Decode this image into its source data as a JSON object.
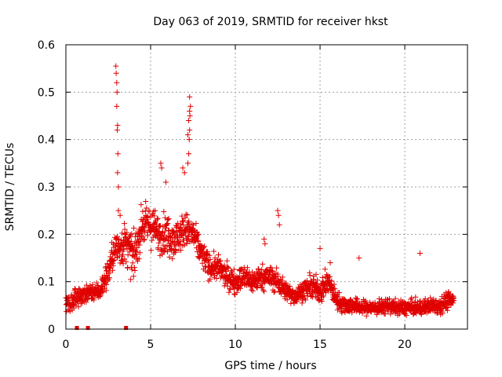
{
  "chart_data": {
    "type": "scatter",
    "title": "Day 063 of 2019, SRMTID for receiver hkst",
    "xlabel": "GPS time / hours",
    "ylabel": "SRMTID / TECUs",
    "xlim": [
      0,
      23.7
    ],
    "ylim": [
      0,
      0.6
    ],
    "xticks": [
      "0",
      "5",
      "10",
      "15",
      "20"
    ],
    "xtick_values": [
      0,
      5,
      10,
      15,
      20
    ],
    "yticks": [
      "0",
      "0.1",
      "0.2",
      "0.3",
      "0.4",
      "0.5",
      "0.6"
    ],
    "ytick_values": [
      0,
      0.1,
      0.2,
      0.3,
      0.4,
      0.5,
      0.6
    ],
    "grid": true,
    "marker": "plus",
    "color": "#e00000",
    "series": [
      {
        "name": "SRMTID",
        "profile": [
          [
            0.0,
            0.06,
            0.03
          ],
          [
            0.3,
            0.05,
            0.03
          ],
          [
            0.6,
            0.07,
            0.03
          ],
          [
            1.0,
            0.07,
            0.03
          ],
          [
            1.5,
            0.08,
            0.03
          ],
          [
            2.0,
            0.08,
            0.03
          ],
          [
            2.5,
            0.12,
            0.05
          ],
          [
            2.8,
            0.16,
            0.05
          ],
          [
            3.0,
            0.17,
            0.06
          ],
          [
            3.5,
            0.18,
            0.07
          ],
          [
            4.0,
            0.15,
            0.07
          ],
          [
            4.5,
            0.22,
            0.06
          ],
          [
            5.0,
            0.22,
            0.07
          ],
          [
            5.5,
            0.2,
            0.06
          ],
          [
            6.0,
            0.2,
            0.07
          ],
          [
            6.5,
            0.19,
            0.06
          ],
          [
            7.0,
            0.21,
            0.06
          ],
          [
            7.5,
            0.2,
            0.05
          ],
          [
            8.0,
            0.16,
            0.05
          ],
          [
            8.5,
            0.13,
            0.04
          ],
          [
            9.0,
            0.13,
            0.04
          ],
          [
            9.5,
            0.11,
            0.04
          ],
          [
            10.0,
            0.1,
            0.04
          ],
          [
            10.5,
            0.11,
            0.04
          ],
          [
            11.0,
            0.1,
            0.04
          ],
          [
            11.5,
            0.11,
            0.04
          ],
          [
            12.0,
            0.11,
            0.04
          ],
          [
            12.5,
            0.1,
            0.04
          ],
          [
            13.0,
            0.08,
            0.03
          ],
          [
            13.5,
            0.07,
            0.03
          ],
          [
            14.0,
            0.08,
            0.03
          ],
          [
            14.5,
            0.09,
            0.04
          ],
          [
            15.0,
            0.08,
            0.04
          ],
          [
            15.5,
            0.1,
            0.04
          ],
          [
            16.0,
            0.06,
            0.03
          ],
          [
            16.5,
            0.05,
            0.03
          ],
          [
            17.0,
            0.05,
            0.025
          ],
          [
            17.5,
            0.045,
            0.025
          ],
          [
            18.0,
            0.045,
            0.025
          ],
          [
            18.5,
            0.045,
            0.025
          ],
          [
            19.0,
            0.05,
            0.025
          ],
          [
            19.5,
            0.045,
            0.025
          ],
          [
            20.0,
            0.045,
            0.025
          ],
          [
            20.5,
            0.045,
            0.025
          ],
          [
            21.0,
            0.045,
            0.025
          ],
          [
            21.5,
            0.05,
            0.025
          ],
          [
            22.0,
            0.05,
            0.03
          ],
          [
            22.5,
            0.06,
            0.03
          ],
          [
            22.9,
            0.06,
            0.03
          ]
        ],
        "spikes": [
          [
            2.95,
            0.555
          ],
          [
            2.97,
            0.54
          ],
          [
            3.0,
            0.52
          ],
          [
            3.02,
            0.5
          ],
          [
            3.0,
            0.47
          ],
          [
            3.05,
            0.43
          ],
          [
            3.03,
            0.42
          ],
          [
            3.07,
            0.37
          ],
          [
            3.05,
            0.33
          ],
          [
            3.1,
            0.3
          ],
          [
            3.1,
            0.25
          ],
          [
            3.2,
            0.24
          ],
          [
            5.6,
            0.35
          ],
          [
            5.65,
            0.34
          ],
          [
            5.9,
            0.31
          ],
          [
            6.9,
            0.34
          ],
          [
            7.0,
            0.33
          ],
          [
            7.3,
            0.49
          ],
          [
            7.35,
            0.47
          ],
          [
            7.3,
            0.46
          ],
          [
            7.32,
            0.45
          ],
          [
            7.25,
            0.44
          ],
          [
            7.3,
            0.42
          ],
          [
            7.2,
            0.41
          ],
          [
            7.28,
            0.4
          ],
          [
            7.25,
            0.37
          ],
          [
            7.2,
            0.35
          ],
          [
            12.5,
            0.25
          ],
          [
            12.55,
            0.24
          ],
          [
            12.6,
            0.22
          ],
          [
            11.7,
            0.19
          ],
          [
            11.75,
            0.18
          ],
          [
            15.0,
            0.17
          ],
          [
            15.6,
            0.14
          ],
          [
            17.3,
            0.15
          ],
          [
            20.9,
            0.16
          ]
        ],
        "zero_markers": [
          0.65,
          1.3,
          3.55
        ]
      }
    ]
  }
}
